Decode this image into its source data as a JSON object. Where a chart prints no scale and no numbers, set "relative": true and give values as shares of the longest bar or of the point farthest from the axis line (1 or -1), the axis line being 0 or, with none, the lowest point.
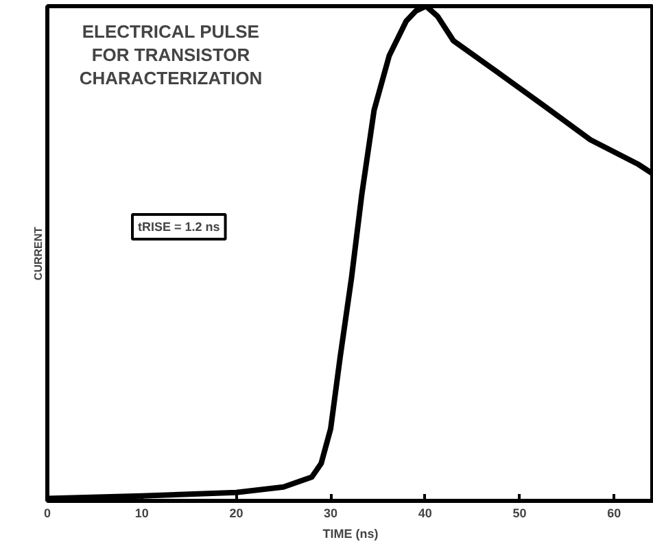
{
  "chart_data": {
    "type": "line",
    "title": "ELECTRICAL PULSE\nFOR TRANSISTOR\nCHARACTERIZATION",
    "xlabel": "TIME (ns)",
    "ylabel": "CURRENT",
    "relative": true,
    "annotations": [
      "tRISE = 1.2 ns"
    ],
    "x": [
      0,
      10,
      20,
      25,
      28,
      29,
      30,
      31,
      32.2,
      33.3,
      34.6,
      36.2,
      38,
      39,
      40.1,
      41.3,
      43,
      47.4,
      52.5,
      57.5,
      62.6,
      64.2
    ],
    "series": [
      {
        "color": "#000000",
        "values": [
          0.005,
          0.01,
          0.017,
          0.028,
          0.048,
          0.076,
          0.146,
          0.29,
          0.45,
          0.62,
          0.79,
          0.9,
          0.97,
          0.99,
          1.0,
          0.98,
          0.93,
          0.87,
          0.8,
          0.73,
          0.68,
          0.66
        ]
      }
    ],
    "xlim": [
      0,
      64.2
    ],
    "xticks": [
      0,
      10,
      20,
      30,
      40,
      50,
      60
    ],
    "grid": false,
    "line_style": "solid",
    "marker": "none"
  }
}
